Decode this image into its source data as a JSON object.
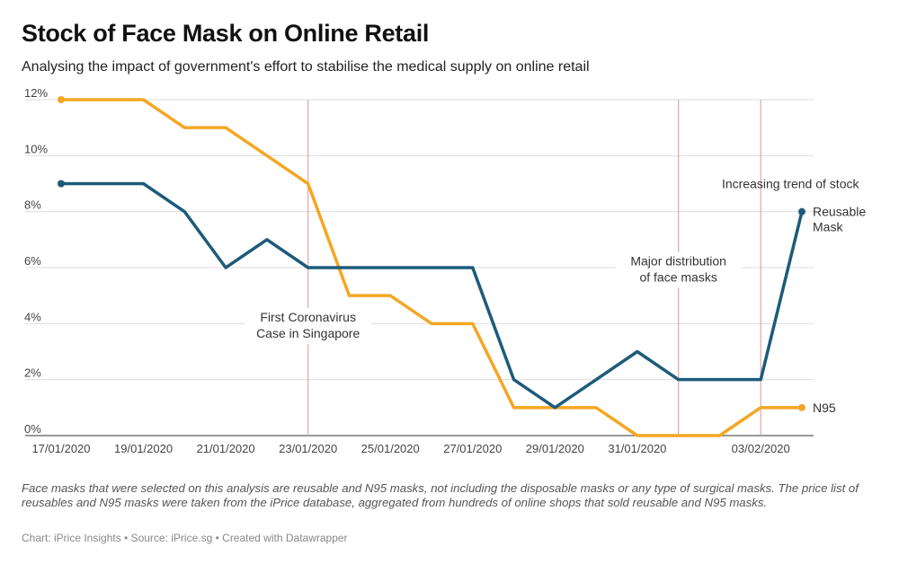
{
  "header": {
    "title": "Stock of Face Mask on Online Retail",
    "subtitle": "Analysing the impact of government's effort to stabilise the medical supply on online retail"
  },
  "footer": {
    "notes": "Face masks that were selected on this analysis are reusable and N95 masks, not including the disposable masks or any type of surgical masks. The price list of reusables and N95 masks were taken from the iPrice database, aggregated from hundreds of online shops that sold reusable and N95 masks.",
    "credit": "Chart: iPrice Insights • Source: iPrice.sg • Created with Datawrapper"
  },
  "chart_data": {
    "type": "line",
    "title": "Stock of Face Mask on Online Retail",
    "x": [
      "17/01/2020",
      "18/01/2020",
      "19/01/2020",
      "20/01/2020",
      "21/01/2020",
      "22/01/2020",
      "23/01/2020",
      "24/01/2020",
      "25/01/2020",
      "26/01/2020",
      "27/01/2020",
      "28/01/2020",
      "29/01/2020",
      "30/01/2020",
      "31/01/2020",
      "01/02/2020",
      "02/02/2020",
      "03/02/2020",
      "04/02/2020"
    ],
    "x_ticks": [
      "17/01/2020",
      "19/01/2020",
      "21/01/2020",
      "23/01/2020",
      "25/01/2020",
      "27/01/2020",
      "29/01/2020",
      "31/01/2020",
      "03/02/2020"
    ],
    "ylim": [
      0,
      12
    ],
    "y_ticks": [
      "0%",
      "2%",
      "4%",
      "6%",
      "8%",
      "10%",
      "12%"
    ],
    "grid": true,
    "series": [
      {
        "name": "N95",
        "color": "#f5a623",
        "values": [
          12,
          12,
          12,
          11,
          11,
          10,
          9,
          5,
          5,
          4,
          4,
          1,
          1,
          1,
          0,
          0,
          0,
          1,
          1
        ]
      },
      {
        "name": "Reusable Mask",
        "color": "#1d5b7a",
        "values": [
          9,
          9,
          9,
          8,
          6,
          7,
          6,
          6,
          6,
          6,
          6,
          2,
          1,
          2,
          3,
          2,
          2,
          2,
          8
        ]
      }
    ],
    "annotations": [
      {
        "text": "First Coronavirus Case in Singapore",
        "lines": [
          "First Coronavirus",
          "Case in Singapore"
        ],
        "x_index": 6
      },
      {
        "text": "Major distribution of face masks",
        "lines": [
          "Major distribution",
          "of face masks"
        ],
        "x_index": 15
      },
      {
        "text": "Increasing trend of stock",
        "lines": [
          "Increasing trend of stock"
        ],
        "x_index": 17
      }
    ],
    "line_labels": [
      {
        "series": "Reusable Mask",
        "lines": [
          "Reusable",
          "Mask"
        ]
      },
      {
        "series": "N95",
        "lines": [
          "N95"
        ]
      }
    ]
  }
}
